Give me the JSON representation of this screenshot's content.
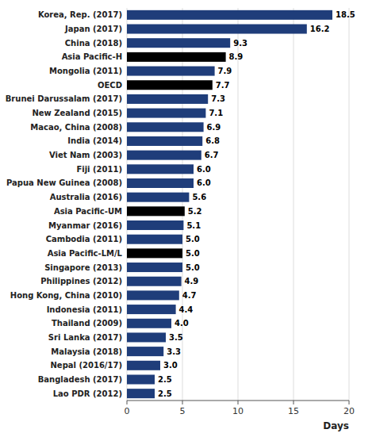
{
  "chart_data": {
    "type": "bar",
    "orientation": "horizontal",
    "categories": [
      "Korea, Rep. (2017)",
      "Japan (2017)",
      "China (2018)",
      "Asia Pacific-H",
      "Mongolia (2011)",
      "OECD",
      "Brunei Darussalam (2017)",
      "New Zealand (2015)",
      "Macao, China (2008)",
      "India (2014)",
      "Viet Nam (2003)",
      "Fiji (2011)",
      "Papua New Guinea (2008)",
      "Australia (2016)",
      "Asia Pacific-UM",
      "Myanmar (2016)",
      "Cambodia (2011)",
      "Asia Pacific-LM/L",
      "Singapore (2013)",
      "Philippines (2012)",
      "Hong Kong, China (2010)",
      "Indonesia (2011)",
      "Thailand (2009)",
      "Sri Lanka (2017)",
      "Malaysia (2018)",
      "Nepal (2016/17)",
      "Bangladesh (2017)",
      "Lao PDR (2012)"
    ],
    "values": [
      18.5,
      16.2,
      9.3,
      8.9,
      7.9,
      7.7,
      7.3,
      7.1,
      6.9,
      6.8,
      6.7,
      6.0,
      6.0,
      5.6,
      5.2,
      5.1,
      5.0,
      5.0,
      5.0,
      4.9,
      4.7,
      4.4,
      4.0,
      3.5,
      3.3,
      3.0,
      2.5,
      2.5
    ],
    "value_labels": [
      "18.5",
      "16.2",
      "9.3",
      "8.9",
      "7.9",
      "7.7",
      "7.3",
      "7.1",
      "6.9",
      "6.8",
      "6.7",
      "6.0",
      "6.0",
      "5.6",
      "5.2",
      "5.1",
      "5.0",
      "5.0",
      "5.0",
      "4.9",
      "4.7",
      "4.4",
      "4.0",
      "3.5",
      "3.3",
      "3.0",
      "2.5",
      "2.5"
    ],
    "colors": [
      "#1f3d7a",
      "#1f3d7a",
      "#1f3d7a",
      "#000000",
      "#1f3d7a",
      "#000000",
      "#1f3d7a",
      "#1f3d7a",
      "#1f3d7a",
      "#1f3d7a",
      "#1f3d7a",
      "#1f3d7a",
      "#1f3d7a",
      "#1f3d7a",
      "#000000",
      "#1f3d7a",
      "#1f3d7a",
      "#000000",
      "#1f3d7a",
      "#1f3d7a",
      "#1f3d7a",
      "#1f3d7a",
      "#1f3d7a",
      "#1f3d7a",
      "#1f3d7a",
      "#1f3d7a",
      "#1f3d7a",
      "#1f3d7a"
    ],
    "xlim": [
      0,
      20
    ],
    "xticks": [
      0,
      5,
      10,
      15,
      20
    ],
    "xlabel": "Days",
    "grid": true,
    "data_labels": true
  }
}
